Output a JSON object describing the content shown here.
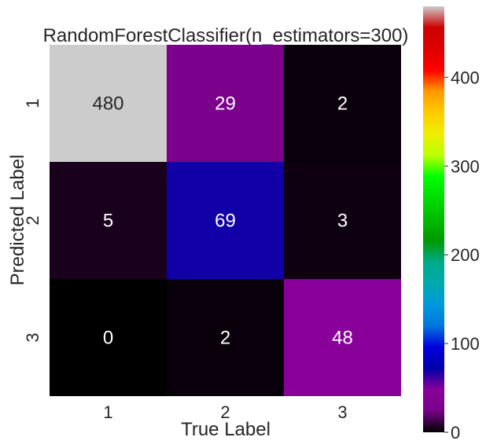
{
  "chart_data": {
    "type": "heatmap",
    "title": "RandomForestClassifier(n_estimators=300)",
    "xlabel": "True Label",
    "ylabel": "Predicted Label",
    "x_categories": [
      "1",
      "2",
      "3"
    ],
    "y_categories": [
      "1",
      "2",
      "3"
    ],
    "values": [
      [
        480,
        29,
        2
      ],
      [
        5,
        69,
        3
      ],
      [
        0,
        2,
        48
      ]
    ],
    "colormap": "nipy_spectral",
    "colorbar": {
      "vmin": 0,
      "vmax": 480,
      "ticks": [
        0,
        100,
        200,
        300,
        400
      ]
    },
    "grid": false
  }
}
